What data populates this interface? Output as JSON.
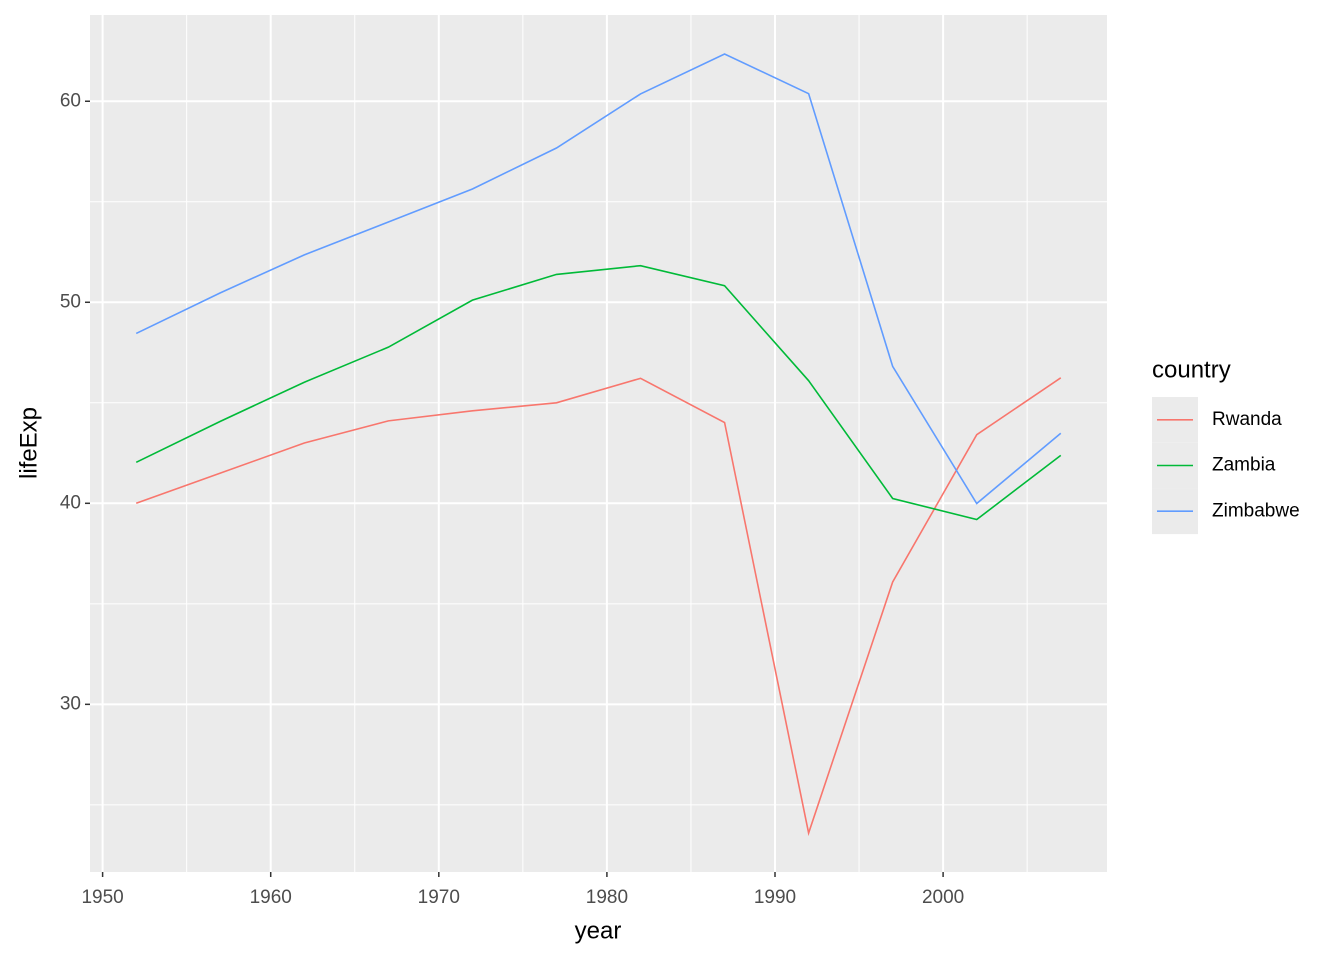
{
  "chart_data": {
    "type": "line",
    "x_label": "year",
    "y_label": "lifeExp",
    "legend_title": "country",
    "x": [
      1952,
      1957,
      1962,
      1967,
      1972,
      1977,
      1982,
      1987,
      1992,
      1997,
      2002,
      2007
    ],
    "series": [
      {
        "name": "Rwanda",
        "color": "#F8766D",
        "values": [
          40.0,
          41.5,
          43.0,
          44.1,
          44.6,
          45.0,
          46.218,
          44.02,
          23.599,
          36.087,
          43.413,
          46.242
        ]
      },
      {
        "name": "Zambia",
        "color": "#00BA38",
        "values": [
          42.038,
          44.077,
          46.023,
          47.768,
          50.107,
          51.386,
          51.821,
          50.821,
          46.1,
          40.238,
          39.193,
          42.384
        ]
      },
      {
        "name": "Zimbabwe",
        "color": "#619CFF",
        "values": [
          48.451,
          50.469,
          52.358,
          53.995,
          55.635,
          57.674,
          60.363,
          62.351,
          60.377,
          46.809,
          39.989,
          43.487
        ]
      }
    ],
    "xlim": [
      1949.25,
      2009.75
    ],
    "ylim": [
      21.66,
      64.29
    ],
    "xticks": [
      1950,
      1960,
      1970,
      1980,
      1990,
      2000
    ],
    "yticks": [
      30,
      40,
      50,
      60
    ],
    "grid": true,
    "legend_position": "right"
  }
}
